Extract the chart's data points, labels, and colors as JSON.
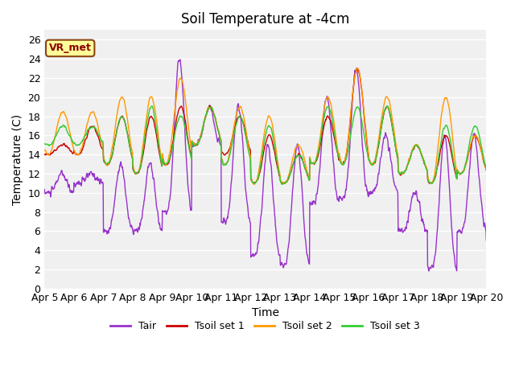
{
  "title": "Soil Temperature at -4cm",
  "xlabel": "Time",
  "ylabel": "Temperature (C)",
  "ylim": [
    0,
    27
  ],
  "annotation": "VR_met",
  "line_colors": {
    "Tair": "#9933CC",
    "Tsoil1": "#CC0000",
    "Tsoil2": "#FF9900",
    "Tsoil3": "#33CC33"
  },
  "legend_labels": [
    "Tair",
    "Tsoil set 1",
    "Tsoil set 2",
    "Tsoil set 3"
  ],
  "bg_color": "#F0F0F0",
  "plot_bg": "#F0F0F0",
  "title_fontsize": 12,
  "axis_fontsize": 10,
  "tick_fontsize": 9,
  "line_width": 1.0,
  "x_tick_labels": [
    "Apr 5",
    "Apr 6",
    "Apr 7",
    "Apr 8",
    "Apr 9",
    "Apr 10",
    "Apr 11",
    "Apr 12",
    "Apr 13",
    "Apr 14",
    "Apr 15",
    "Apr 16",
    "Apr 17",
    "Apr 18",
    "Apr 19",
    "Apr 20"
  ],
  "x_tick_positions": [
    0,
    1,
    2,
    3,
    4,
    5,
    6,
    7,
    8,
    9,
    10,
    11,
    12,
    13,
    14,
    15
  ],
  "yticks": [
    0,
    2,
    4,
    6,
    8,
    10,
    12,
    14,
    16,
    18,
    20,
    22,
    24,
    26
  ]
}
